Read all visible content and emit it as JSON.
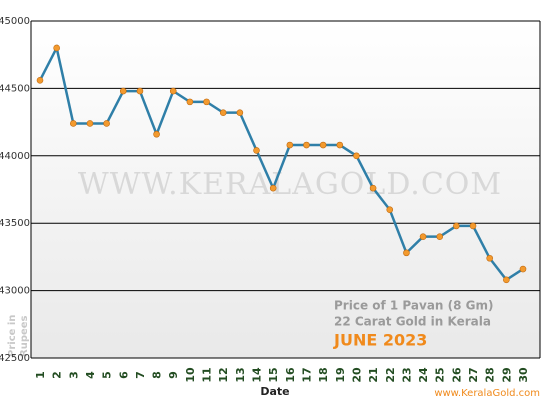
{
  "chart_data": {
    "type": "line",
    "categories": [
      "1",
      "2",
      "3",
      "4",
      "5",
      "6",
      "7",
      "8",
      "9",
      "10",
      "11",
      "12",
      "13",
      "14",
      "15",
      "16",
      "17",
      "18",
      "19",
      "20",
      "21",
      "22",
      "23",
      "24",
      "25",
      "26",
      "27",
      "28",
      "29",
      "30"
    ],
    "values": [
      44560,
      44800,
      44240,
      44240,
      44240,
      44480,
      44480,
      44160,
      44480,
      44400,
      44400,
      44320,
      44320,
      44040,
      43760,
      44080,
      44080,
      44080,
      44080,
      44000,
      43760,
      43600,
      43280,
      43400,
      43400,
      43480,
      43480,
      43240,
      43080,
      43160
    ],
    "color": "#2f7fa8",
    "marker_color": "#f39a2e",
    "ylim": [
      42500,
      45000
    ],
    "yticks": [
      42500,
      43000,
      43500,
      44000,
      44500,
      45000
    ],
    "grid": true,
    "x_label": "Date",
    "y_label_lines": [
      "Price in",
      "Rupees"
    ],
    "watermark": "WWW.KERALAGOLD.COM",
    "annotations": [
      "Price of 1 Pavan (8 Gm)",
      "22 Carat Gold in Kerala"
    ],
    "period": "JUNE 2023",
    "site": "www.KeralaGold.com"
  }
}
